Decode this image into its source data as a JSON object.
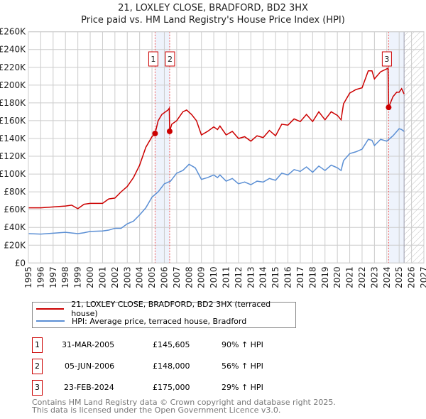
{
  "title": "21, LOXLEY CLOSE, BRADFORD, BD2 3HX",
  "subtitle": "Price paid vs. HM Land Registry's House Price Index (HPI)",
  "chart_data": {
    "type": "line",
    "xlim": [
      1995,
      2027
    ],
    "ylim": [
      0,
      260000
    ],
    "yticks": [
      "£0",
      "£20K",
      "£40K",
      "£60K",
      "£80K",
      "£100K",
      "£120K",
      "£140K",
      "£160K",
      "£180K",
      "£200K",
      "£220K",
      "£240K",
      "£260K"
    ],
    "xticks": [
      "1995",
      "1996",
      "1997",
      "1998",
      "1999",
      "2000",
      "2001",
      "2002",
      "2003",
      "2004",
      "2005",
      "2006",
      "2007",
      "2008",
      "2009",
      "2010",
      "2011",
      "2012",
      "2013",
      "2014",
      "2015",
      "2016",
      "2017",
      "2018",
      "2019",
      "2020",
      "2021",
      "2022",
      "2023",
      "2024",
      "2025",
      "2026",
      "2027"
    ],
    "shaded": [
      [
        2005.25,
        2006.43
      ],
      [
        2024.15,
        2025.4
      ]
    ],
    "forecast_hatch": [
      2025.4,
      2027
    ],
    "series": [
      {
        "name": "21, LOXLEY CLOSE, BRADFORD, BD2 3HX (terraced house)",
        "color": "#cc0000",
        "x": [
          1995,
          1996,
          1997,
          1998,
          1998.5,
          1999,
          1999.5,
          2000,
          2001,
          2001.5,
          2002,
          2002.5,
          2003,
          2003.5,
          2004,
          2004.5,
          2005,
          2005.25,
          2005.5,
          2005.8,
          2006.3,
          2006.4,
          2006.43,
          2006.6,
          2007,
          2007.5,
          2007.8,
          2008.2,
          2008.6,
          2009,
          2009.5,
          2010,
          2010.3,
          2010.5,
          2011,
          2011.5,
          2012,
          2012.5,
          2013,
          2013.5,
          2014,
          2014.5,
          2015,
          2015.5,
          2016,
          2016.5,
          2017,
          2017.5,
          2018,
          2018.5,
          2019,
          2019.5,
          2020,
          2020.3,
          2020.5,
          2021,
          2021.5,
          2022,
          2022.5,
          2022.8,
          2023,
          2023.5,
          2024.1,
          2024.15,
          2024.5,
          2024.8,
          2025,
          2025.2,
          2025.4
        ],
        "y": [
          62000,
          62000,
          63000,
          64000,
          65000,
          61000,
          66000,
          67000,
          67000,
          72000,
          73000,
          80000,
          86000,
          96000,
          110000,
          130000,
          142000,
          145605,
          160000,
          167000,
          172000,
          174000,
          148000,
          156000,
          160000,
          170000,
          172000,
          167000,
          160000,
          144000,
          148000,
          153000,
          150000,
          154000,
          144000,
          148000,
          140000,
          142000,
          137000,
          143000,
          141000,
          149000,
          143000,
          156000,
          155000,
          162000,
          159000,
          167000,
          159000,
          170000,
          161000,
          170000,
          166000,
          161000,
          179000,
          191000,
          195000,
          197000,
          216000,
          216000,
          207000,
          215000,
          219000,
          175000,
          187000,
          192000,
          192000,
          196000,
          190000
        ]
      },
      {
        "name": "HPI: Average price, terraced house, Bradford",
        "color": "#5b8fd4",
        "x": [
          1995,
          1996,
          1997,
          1998,
          1999,
          1999.5,
          2000,
          2001,
          2001.5,
          2002,
          2002.5,
          2003,
          2003.5,
          2004,
          2004.5,
          2005,
          2005.25,
          2005.5,
          2006,
          2006.5,
          2007,
          2007.5,
          2008,
          2008.5,
          2009,
          2009.5,
          2010,
          2010.3,
          2010.5,
          2011,
          2011.5,
          2012,
          2012.5,
          2013,
          2013.5,
          2014,
          2014.5,
          2015,
          2015.5,
          2016,
          2016.5,
          2017,
          2017.5,
          2018,
          2018.5,
          2019,
          2019.5,
          2020,
          2020.3,
          2020.5,
          2021,
          2021.5,
          2022,
          2022.5,
          2022.8,
          2023,
          2023.5,
          2024,
          2024.5,
          2025,
          2025.2,
          2025.4
        ],
        "y": [
          33000,
          32500,
          33500,
          34500,
          33000,
          34000,
          35500,
          36000,
          37000,
          39000,
          39000,
          44000,
          47000,
          54000,
          62000,
          74000,
          77000,
          80000,
          89000,
          92000,
          101000,
          104000,
          111000,
          107000,
          94000,
          96000,
          99000,
          96000,
          99000,
          92000,
          95000,
          89000,
          91000,
          88000,
          92000,
          91000,
          95000,
          93000,
          101000,
          99000,
          105000,
          103000,
          108000,
          102000,
          109000,
          104000,
          110000,
          107000,
          104000,
          115000,
          123000,
          125000,
          128000,
          139000,
          138000,
          132000,
          139000,
          137000,
          143000,
          151000,
          150000,
          148000
        ]
      }
    ],
    "sales": [
      {
        "label": "1",
        "x": 2005.25,
        "y": 145605
      },
      {
        "label": "2",
        "x": 2006.43,
        "y": 148000
      },
      {
        "label": "3",
        "x": 2024.15,
        "y": 175000
      }
    ]
  },
  "transactions": [
    {
      "num": "1",
      "date": "31-MAR-2005",
      "price": "£145,605",
      "hpi": "90% ↑ HPI"
    },
    {
      "num": "2",
      "date": "05-JUN-2006",
      "price": "£148,000",
      "hpi": "56% ↑ HPI"
    },
    {
      "num": "3",
      "date": "23-FEB-2024",
      "price": "£175,000",
      "hpi": "29% ↑ HPI"
    }
  ],
  "footer": [
    "Contains HM Land Registry data © Crown copyright and database right 2025.",
    "This data is licensed under the Open Government Licence v3.0."
  ]
}
